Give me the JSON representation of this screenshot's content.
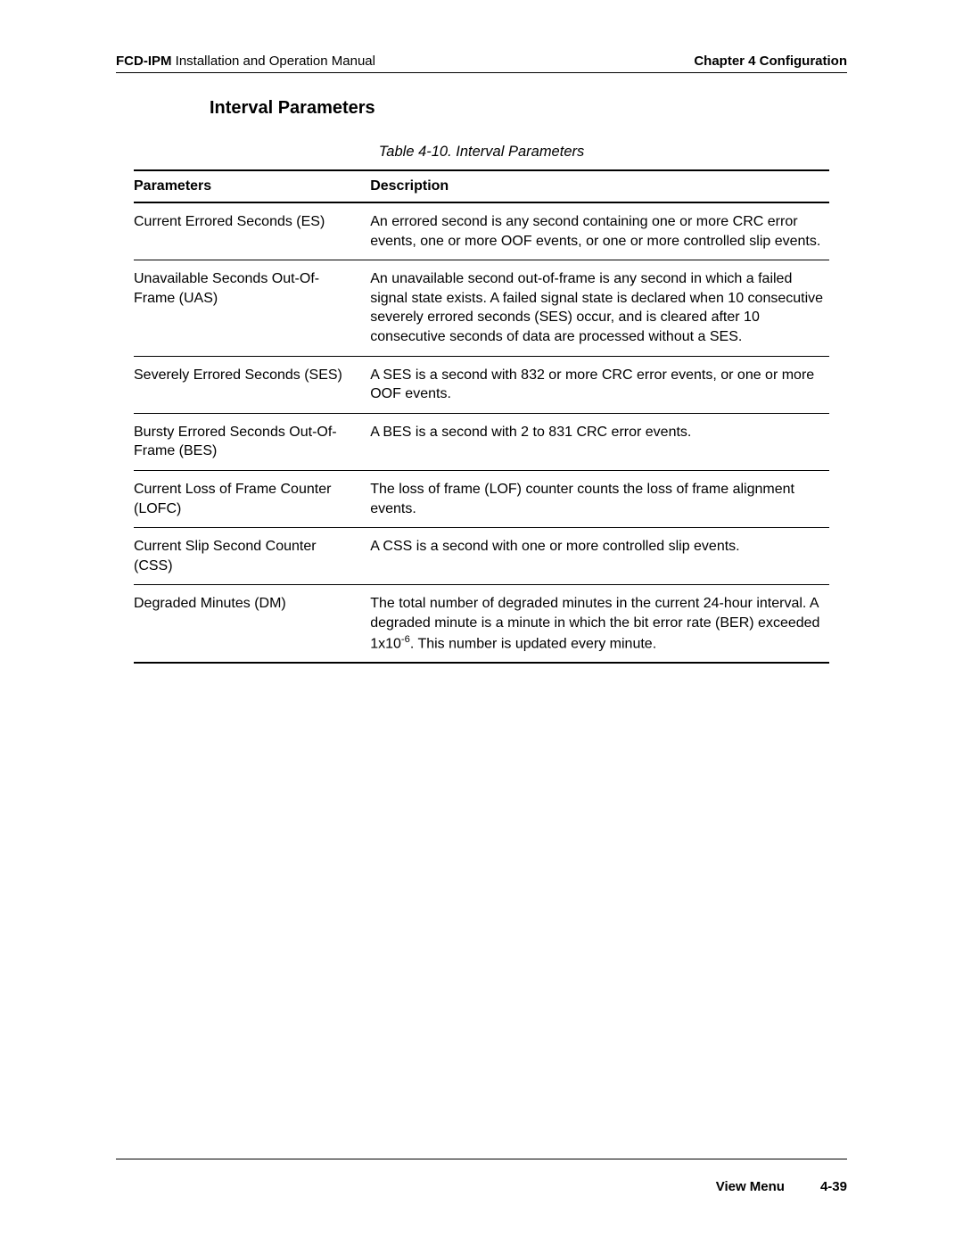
{
  "header": {
    "product": "FCD-IPM",
    "manual_title": " Installation and Operation Manual",
    "chapter": "Chapter 4  Configuration"
  },
  "section_title": "Interval Parameters",
  "table": {
    "caption": "Table 4-10.  Interval Parameters",
    "columns": [
      "Parameters",
      "Description"
    ],
    "rows": [
      {
        "param": "Current Errored Seconds (ES)",
        "desc": "An errored second is any second containing one or more CRC error events, one or more OOF events, or one or more controlled slip events."
      },
      {
        "param": "Unavailable Seconds Out-Of-Frame (UAS)",
        "desc": "An unavailable second out-of-frame is any second in which a failed signal state exists. A failed signal state is declared when 10 consecutive severely errored seconds (SES) occur, and is cleared after 10 consecutive seconds of data are processed without a SES."
      },
      {
        "param": "Severely Errored Seconds (SES)",
        "desc": "A SES is a second with 832 or more CRC error events, or one or more OOF events."
      },
      {
        "param": "Bursty Errored Seconds Out-Of-Frame (BES)",
        "desc": "A BES is a second with 2 to 831 CRC error events."
      },
      {
        "param": "Current Loss of Frame Counter (LOFC)",
        "desc": "The loss of frame (LOF) counter counts the loss of frame alignment events."
      },
      {
        "param": "Current Slip Second Counter (CSS)",
        "desc": "A CSS is a second with one or more controlled slip events."
      },
      {
        "param": "Degraded Minutes (DM)",
        "desc_html": "The total number of degraded minutes in the current 24-hour interval. A degraded minute is a minute in which the bit error rate (BER) exceeded 1x10<sup>-6</sup>. This number is updated every minute."
      }
    ]
  },
  "footer": {
    "section": "View Menu",
    "page": "4-39"
  },
  "colors": {
    "text": "#000000",
    "background": "#ffffff",
    "rule": "#000000"
  }
}
